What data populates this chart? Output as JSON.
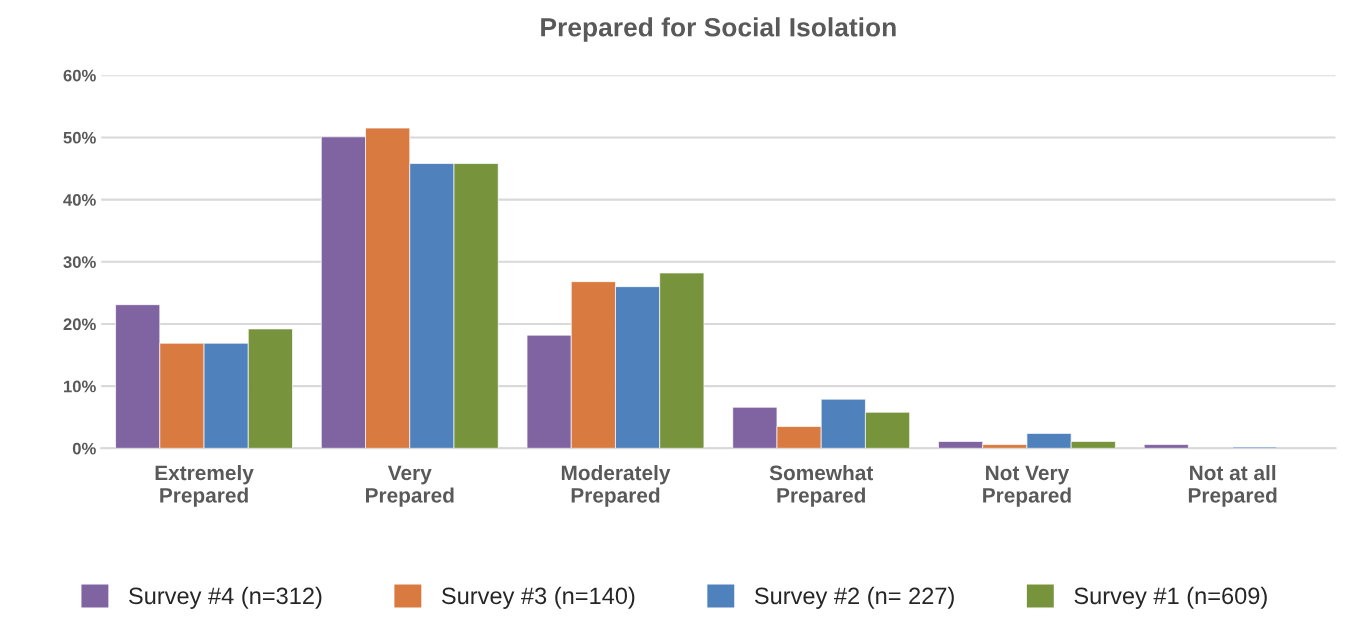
{
  "chart_data": {
    "type": "bar",
    "title": "Prepared for Social Isolation",
    "categories": [
      "Extremely\nPrepared",
      "Very\nPrepared",
      "Moderately\nPrepared",
      "Somewhat\nPrepared",
      "Not Very\nPrepared",
      "Not at all\nPrepared"
    ],
    "series": [
      {
        "name": "Survey #4 (n=312)",
        "color": "#8064a2",
        "values": [
          23.1,
          50.1,
          18.2,
          6.6,
          1.1,
          0.6
        ]
      },
      {
        "name": "Survey #3 (n=140)",
        "color": "#d97a40",
        "values": [
          16.9,
          51.5,
          26.8,
          3.5,
          0.6,
          null
        ]
      },
      {
        "name": "Survey #2 (n= 227)",
        "color": "#4f81bd",
        "values": [
          16.9,
          45.8,
          26.0,
          7.9,
          2.4,
          0.2
        ]
      },
      {
        "name": "Survey #1 (n=609)",
        "color": "#77933c",
        "values": [
          19.2,
          45.8,
          28.2,
          5.8,
          1.1,
          null
        ]
      }
    ],
    "ylim": [
      0,
      60
    ],
    "yticks": [
      {
        "value": 0,
        "label": "0%"
      },
      {
        "value": 10,
        "label": "10%"
      },
      {
        "value": 20,
        "label": "20%"
      },
      {
        "value": 30,
        "label": "30%"
      },
      {
        "value": 40,
        "label": "40%"
      },
      {
        "value": 50,
        "label": "50%"
      },
      {
        "value": 60,
        "label": "60%"
      }
    ],
    "grid": "y",
    "legend": "bottom"
  }
}
